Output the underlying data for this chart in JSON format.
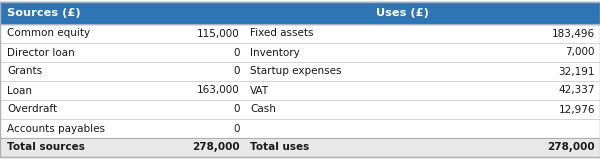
{
  "header_bg_color": "#2e75b6",
  "header_text_color": "#ffffff",
  "header_left": "Sources (£)",
  "header_mid": "Uses (£)",
  "border_color": "#b0b0b0",
  "text_color": "#1a1a1a",
  "total_row_bg": "#e8e8e8",
  "rows": [
    {
      "source_label": "Common equity",
      "source_value": "115,000",
      "use_label": "Fixed assets",
      "use_value": "183,496"
    },
    {
      "source_label": "Director loan",
      "source_value": "0",
      "use_label": "Inventory",
      "use_value": "7,000"
    },
    {
      "source_label": "Grants",
      "source_value": "0",
      "use_label": "Startup expenses",
      "use_value": "32,191"
    },
    {
      "source_label": "Loan",
      "source_value": "163,000",
      "use_label": "VAT",
      "use_value": "42,337"
    },
    {
      "source_label": "Overdraft",
      "source_value": "0",
      "use_label": "Cash",
      "use_value": "12,976"
    },
    {
      "source_label": "Accounts payables",
      "source_value": "0",
      "use_label": "",
      "use_value": ""
    }
  ],
  "total_source_label": "Total sources",
  "total_source_value": "278,000",
  "total_use_label": "Total uses",
  "total_use_value": "278,000",
  "font_size": 7.5,
  "header_font_size": 8.2,
  "fig_width": 6.0,
  "fig_height": 1.63,
  "dpi": 100
}
